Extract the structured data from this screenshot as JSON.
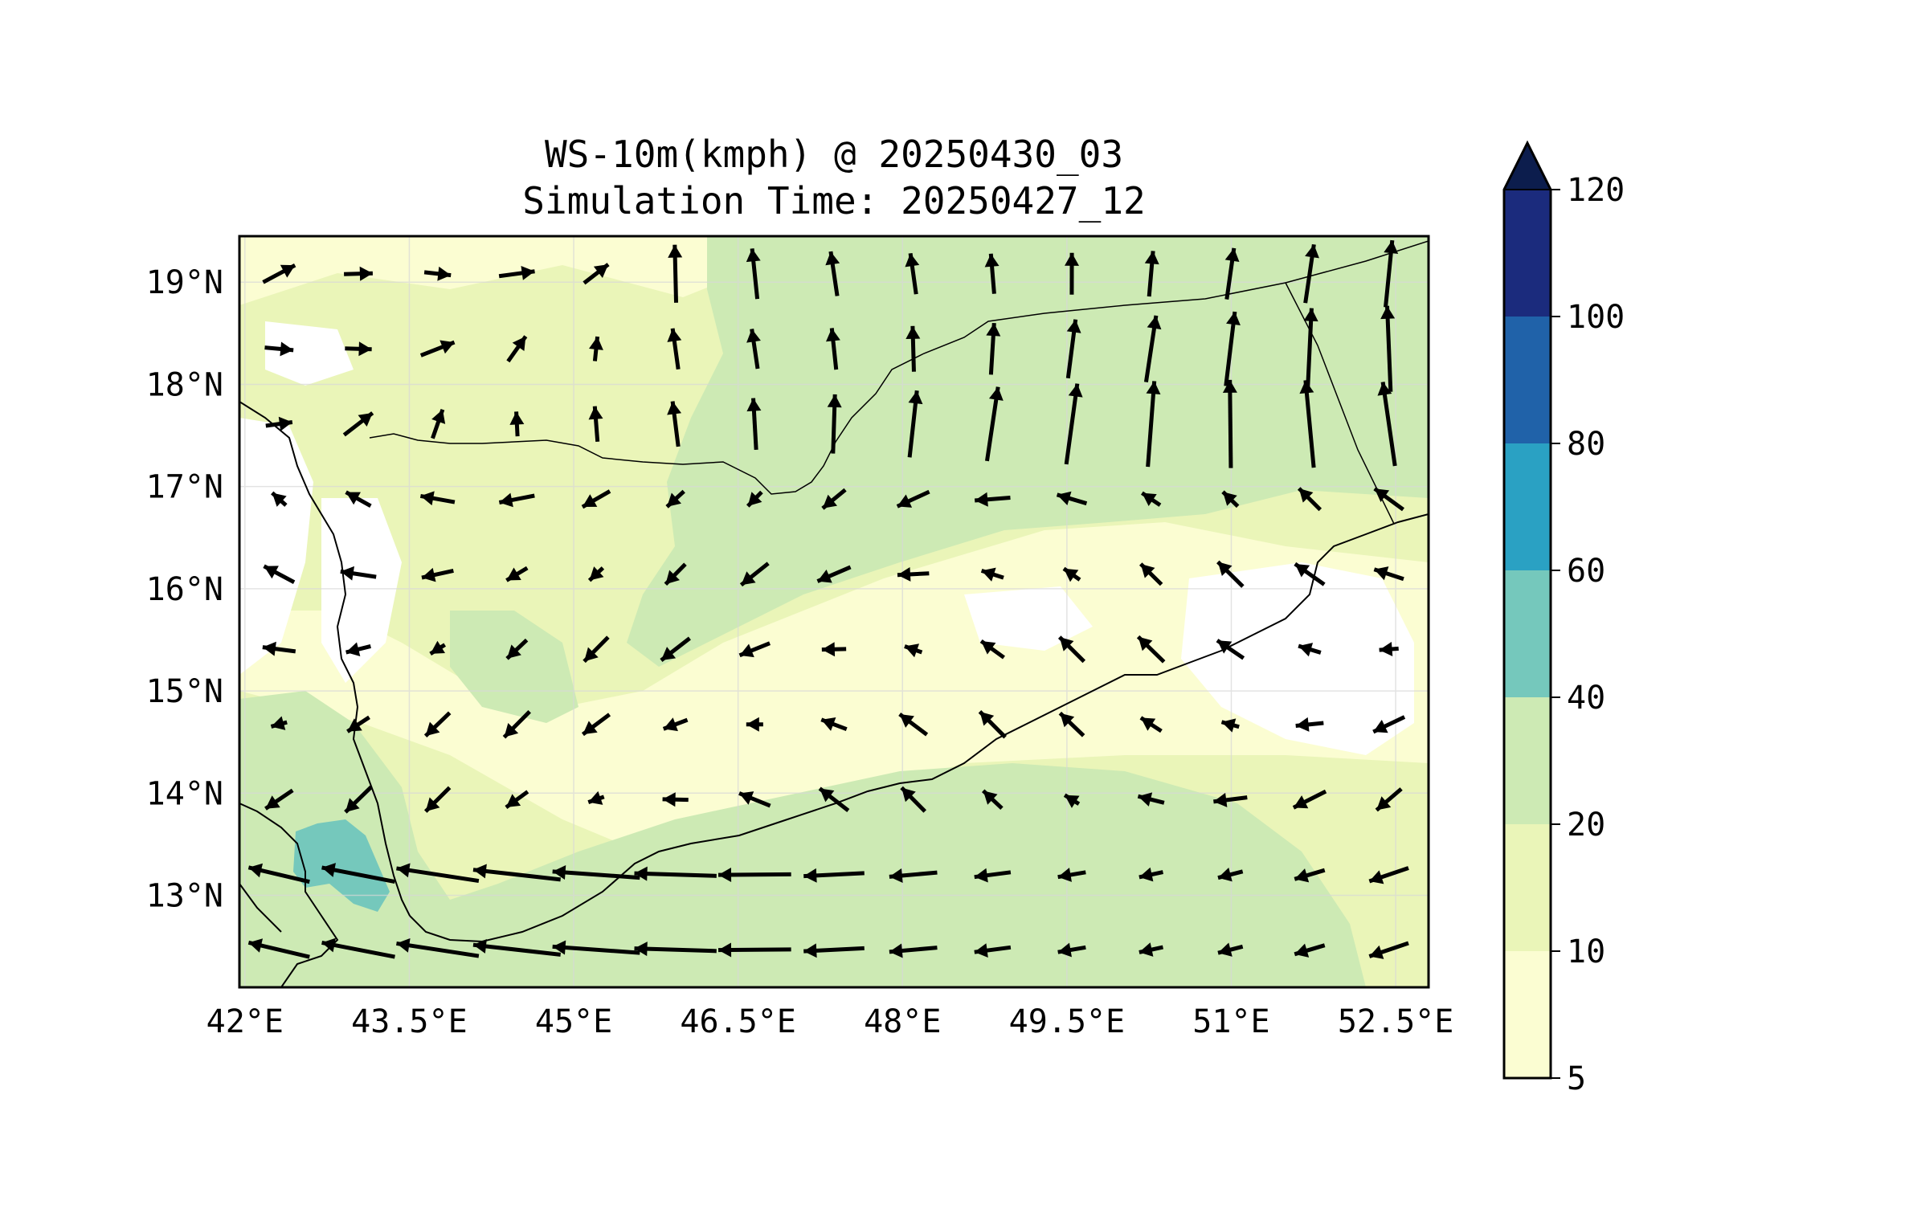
{
  "title": {
    "line1": "WS-10m(kmph) @ 20250430_03",
    "line2": "Simulation Time: 20250427_12"
  },
  "map": {
    "extent": {
      "lon": [
        41.95,
        52.8
      ],
      "lat": [
        12.1,
        19.45
      ]
    },
    "lon_ticks": [
      {
        "value": 42.0,
        "label": "42°E"
      },
      {
        "value": 43.5,
        "label": "43.5°E"
      },
      {
        "value": 45.0,
        "label": "45°E"
      },
      {
        "value": 46.5,
        "label": "46.5°E"
      },
      {
        "value": 48.0,
        "label": "48°E"
      },
      {
        "value": 49.5,
        "label": "49.5°E"
      },
      {
        "value": 51.0,
        "label": "51°E"
      },
      {
        "value": 52.5,
        "label": "52.5°E"
      }
    ],
    "lat_ticks": [
      {
        "value": 13,
        "label": "13°N"
      },
      {
        "value": 14,
        "label": "14°N"
      },
      {
        "value": 15,
        "label": "15°N"
      },
      {
        "value": 16,
        "label": "16°N"
      },
      {
        "value": 17,
        "label": "17°N"
      },
      {
        "value": 18,
        "label": "18°N"
      },
      {
        "value": 19,
        "label": "19°N"
      }
    ],
    "grid": true
  },
  "colorbar": {
    "ticks": [
      "5",
      "10",
      "20",
      "40",
      "60",
      "80",
      "100",
      "120"
    ],
    "colors": [
      "#fbfdd2",
      "#eaf5b8",
      "#cdeab4",
      "#75c8bc",
      "#2aa1c3",
      "#2062a9",
      "#1b2b7d"
    ],
    "extend_color": "#0c1d4d",
    "extend": "max"
  },
  "colors": {
    "calm": "#ffffff",
    "low": "#fbfdd2",
    "mid": "#eaf5b8",
    "high": "#cdeab4",
    "peak": "#75c8bc",
    "arrow": "#000000"
  }
}
